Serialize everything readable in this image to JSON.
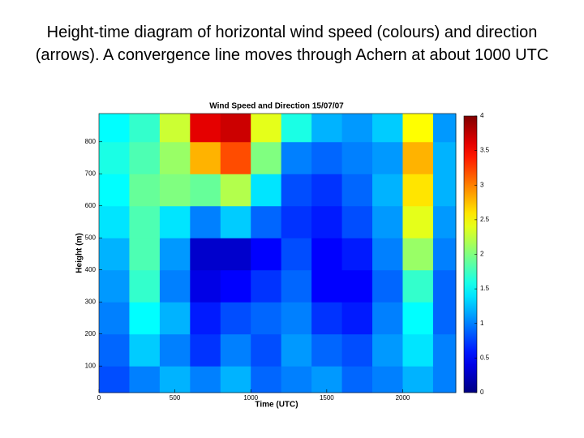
{
  "slide_title": "Height-time diagram of horizontal wind speed (colours) and direction (arrows). A convergence line moves through Achern at about 1000 UTC",
  "chart_data": {
    "type": "heatmap",
    "title": "Wind Speed and Direction 15/07/07",
    "x_label": "Time (UTC)",
    "y_label": "Height (m)",
    "x": [
      100,
      300,
      500,
      700,
      900,
      1100,
      1300,
      1500,
      1700,
      1900,
      2100,
      2300
    ],
    "y": [
      50,
      150,
      250,
      350,
      450,
      550,
      650,
      750,
      850
    ],
    "z": [
      [
        0.8,
        1.0,
        1.2,
        1.0,
        1.2,
        0.9,
        1.0,
        1.1,
        0.9,
        1.0,
        1.2,
        1.0
      ],
      [
        0.9,
        1.3,
        1.0,
        0.7,
        1.0,
        0.8,
        1.1,
        0.9,
        0.8,
        1.1,
        1.4,
        1.0
      ],
      [
        1.0,
        1.5,
        1.2,
        0.6,
        0.8,
        0.9,
        1.0,
        0.7,
        0.6,
        1.0,
        1.5,
        0.9
      ],
      [
        1.1,
        1.7,
        1.0,
        0.4,
        0.5,
        0.7,
        0.9,
        0.5,
        0.5,
        0.9,
        1.7,
        0.9
      ],
      [
        1.2,
        1.8,
        1.1,
        0.3,
        0.3,
        0.5,
        0.8,
        0.5,
        0.6,
        1.0,
        2.1,
        1.0
      ],
      [
        1.4,
        1.8,
        1.4,
        1.0,
        1.3,
        0.9,
        0.7,
        0.6,
        0.8,
        1.1,
        2.4,
        1.1
      ],
      [
        1.5,
        1.9,
        2.0,
        1.9,
        2.2,
        1.4,
        0.8,
        0.7,
        0.9,
        1.2,
        2.6,
        1.2
      ],
      [
        1.6,
        1.8,
        2.1,
        2.8,
        3.2,
        2.0,
        1.0,
        0.9,
        1.0,
        1.1,
        2.8,
        1.2
      ],
      [
        1.5,
        1.7,
        2.3,
        3.6,
        3.7,
        2.4,
        1.6,
        1.2,
        1.1,
        1.3,
        2.5,
        1.1
      ]
    ],
    "xlim": [
      0,
      2350
    ],
    "xticks": [
      0,
      500,
      1000,
      1500,
      2000
    ],
    "ylim": [
      17,
      888
    ],
    "yticks": [
      100,
      200,
      300,
      400,
      500,
      600,
      700,
      800
    ],
    "colormap": "jet",
    "clim": [
      0,
      4
    ],
    "cticks": [
      0,
      0.5,
      1,
      1.5,
      2,
      2.5,
      3,
      3.5,
      4
    ]
  }
}
